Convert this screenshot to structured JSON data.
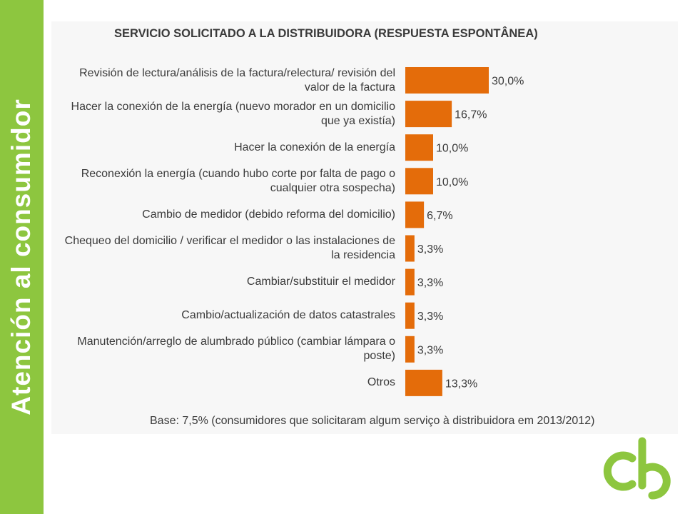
{
  "sidebar": {
    "title": "Atención al consumidor",
    "color": "#8dc63f"
  },
  "chart_data": {
    "type": "bar",
    "orientation": "horizontal",
    "title": "SERVICIO SOLICITADO A LA DISTRIBUIDORA (RESPUESTA ESPONTÂNEA)",
    "categories": [
      "Revisión de lectura/análisis de la factura/relectura/ revisión del valor de la factura",
      "Hacer la conexión de la energía (nuevo morador en un domicilio que ya existía)",
      "Hacer la conexión de la energía",
      "Reconexión la energía (cuando hubo corte por falta de pago o cualquier otra sospecha)",
      "Cambio de medidor (debido reforma del domicilio)",
      "Chequeo del domicilio / verificar el medidor o las instalaciones de la residencia",
      "Cambiar/substituir el medidor",
      "Cambio/actualización de datos catastrales",
      "Manutención/arreglo de alumbrado público (cambiar lámpara o poste)",
      "Otros"
    ],
    "values": [
      30.0,
      16.7,
      10.0,
      10.0,
      6.7,
      3.3,
      3.3,
      3.3,
      3.3,
      13.3
    ],
    "value_labels": [
      "30,0%",
      "16,7%",
      "10,0%",
      "10,0%",
      "6,7%",
      "3,3%",
      "3,3%",
      "3,3%",
      "3,3%",
      "13,3%"
    ],
    "bar_color": "#e46c0a",
    "xlim": [
      0,
      30
    ],
    "grid": false,
    "legend": "none"
  },
  "footnote": "Base: 7,5% (consumidores que solicitaram algum serviço à distribuidora em 2013/2012)",
  "logo": {
    "name": "cb",
    "color": "#8dc63f"
  }
}
